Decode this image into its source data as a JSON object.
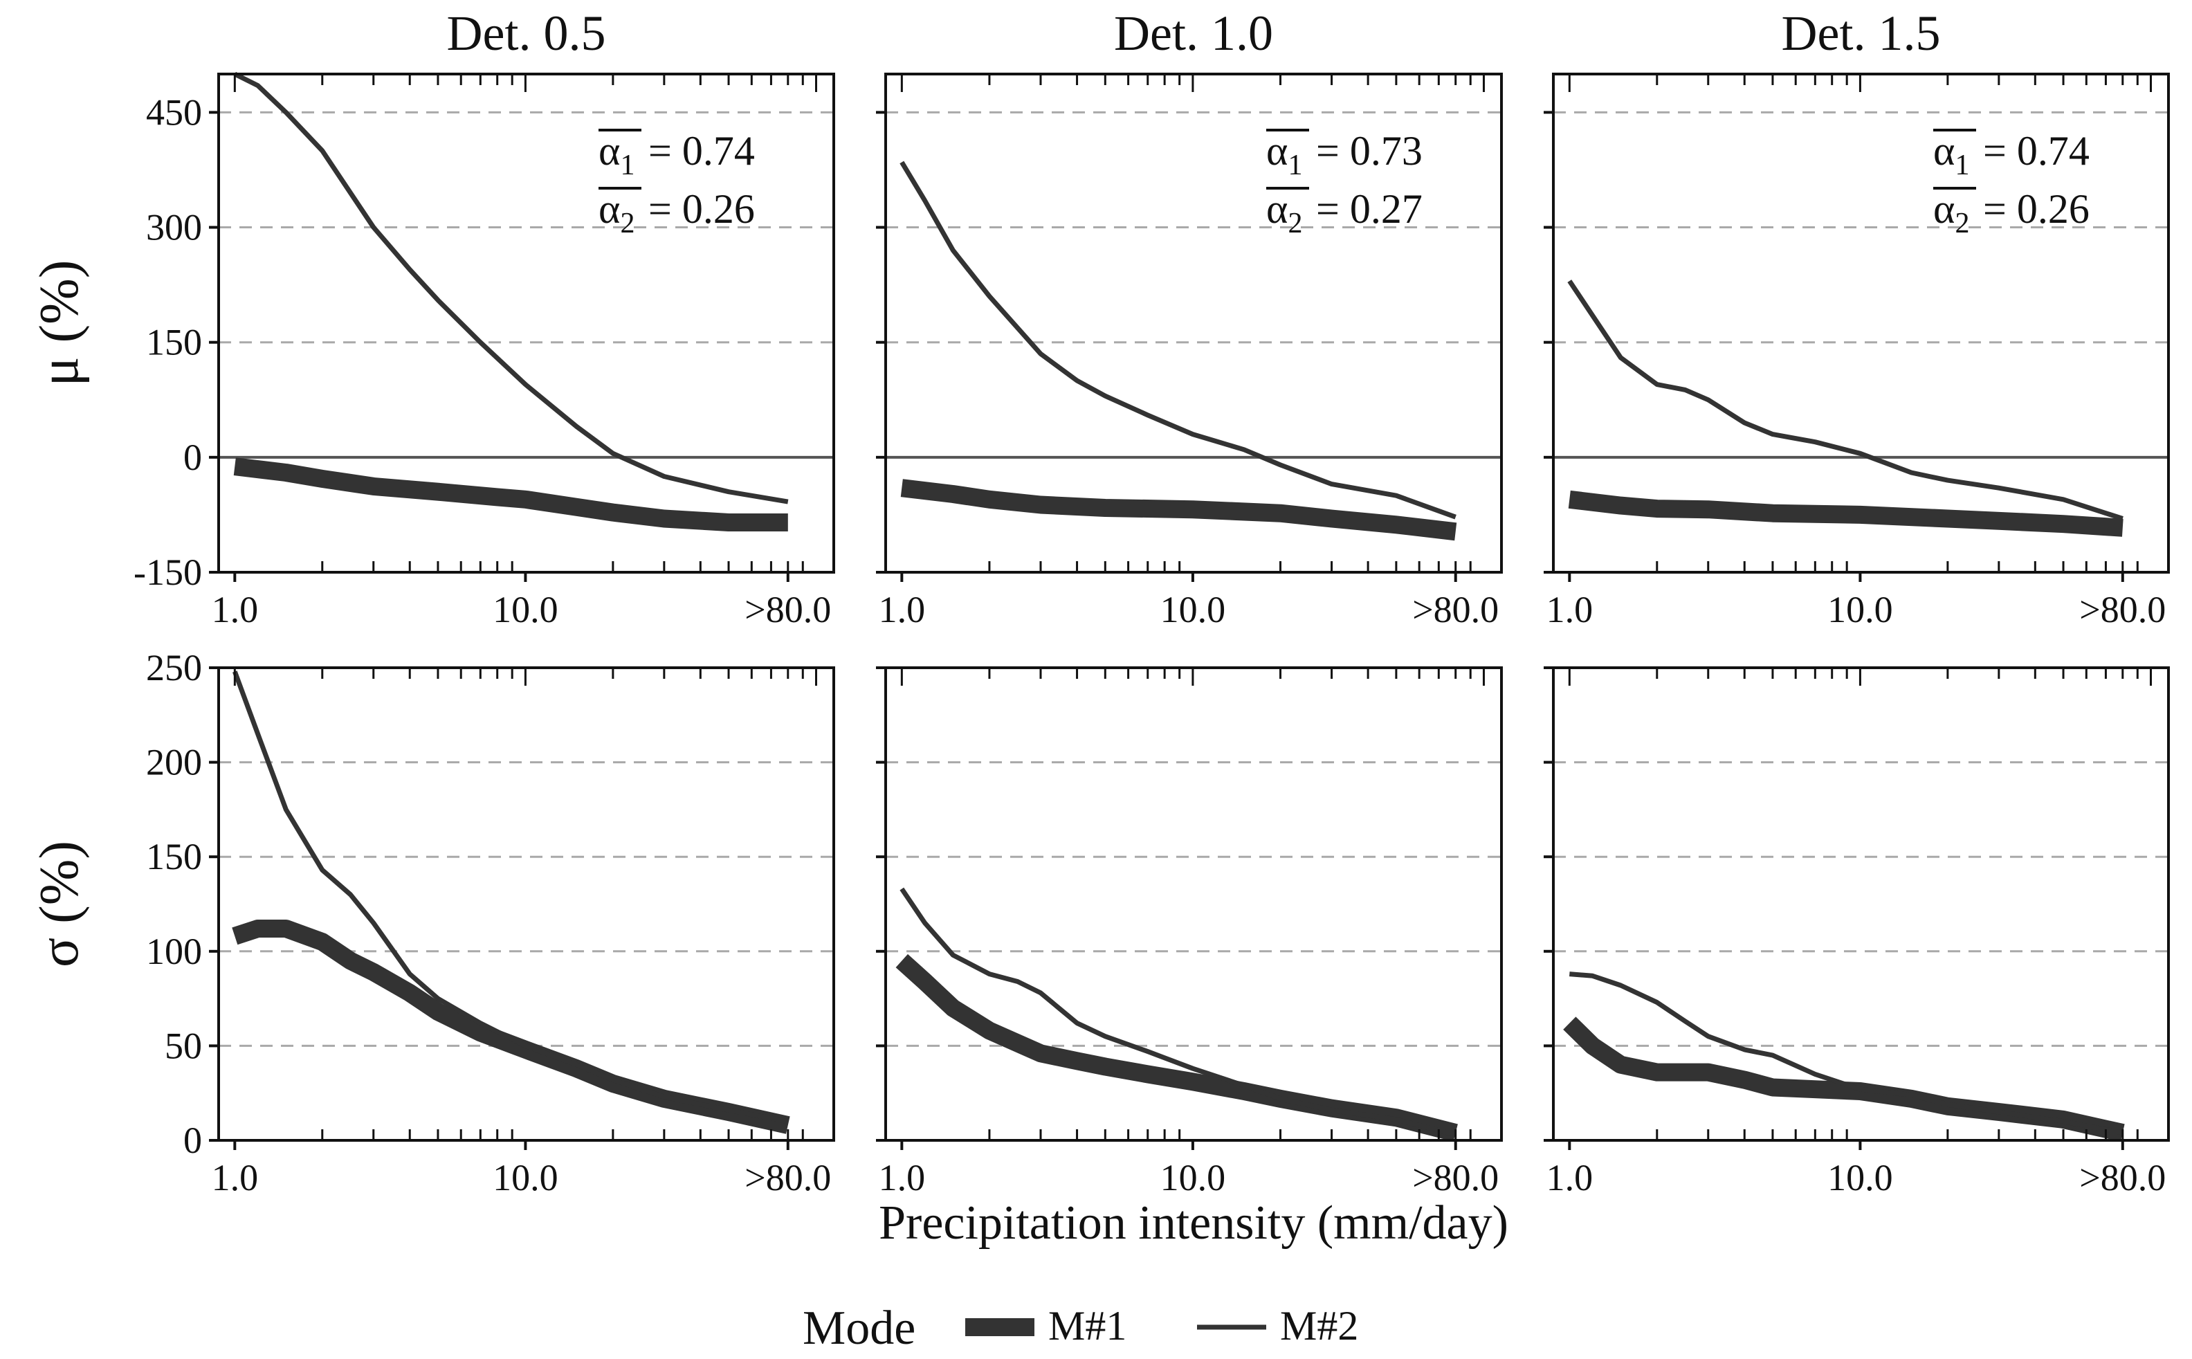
{
  "chart_data": {
    "type": "line",
    "x_axis": {
      "label": "Precipitation intensity (mm/day)",
      "scale": "log",
      "range": [
        0.88,
        115
      ],
      "tick_values": [
        1,
        10,
        80
      ],
      "tick_labels": [
        "1.0",
        "10.0",
        ">80.0"
      ]
    },
    "columns": [
      "Det. 0.5",
      "Det. 1.0",
      "Det. 1.5"
    ],
    "rows": [
      {
        "ylabel": "μ (%)",
        "ylim": [
          -150,
          500
        ],
        "yticks": [
          -150,
          0,
          150,
          300,
          450
        ],
        "ytick_labels": [
          "-150",
          "0",
          "150",
          "300",
          "450"
        ],
        "gridlines": [
          150,
          300,
          450
        ],
        "zero_line": true
      },
      {
        "ylabel": "σ (%)",
        "ylim": [
          0,
          250
        ],
        "yticks": [
          0,
          50,
          100,
          150,
          200,
          250
        ],
        "ytick_labels": [
          "0",
          "50",
          "100",
          "150",
          "200",
          "250"
        ],
        "gridlines": [
          50,
          100,
          150,
          200
        ],
        "zero_line": false
      }
    ],
    "legend": {
      "title": "Mode",
      "position": "bottom-center",
      "entries": [
        {
          "name": "M#1",
          "style": "thick"
        },
        {
          "name": "M#2",
          "style": "thin"
        }
      ]
    },
    "annotations": [
      {
        "panel": "Det. 0.5",
        "alpha1_label": "α",
        "alpha1_sub": "1",
        "alpha1_value": "= 0.74",
        "alpha2_label": "α",
        "alpha2_sub": "2",
        "alpha2_value": "= 0.26"
      },
      {
        "panel": "Det. 1.0",
        "alpha1_label": "α",
        "alpha1_sub": "1",
        "alpha1_value": "= 0.73",
        "alpha2_label": "α",
        "alpha2_sub": "2",
        "alpha2_value": "= 0.27"
      },
      {
        "panel": "Det. 1.5",
        "alpha1_label": "α",
        "alpha1_sub": "1",
        "alpha1_value": "= 0.74",
        "alpha2_label": "α",
        "alpha2_sub": "2",
        "alpha2_value": "= 0.26"
      }
    ],
    "panels": [
      {
        "row": 0,
        "col": 0,
        "series": [
          {
            "name": "M#1",
            "points": [
              [
                1,
                -12
              ],
              [
                1.5,
                -20
              ],
              [
                2,
                -28
              ],
              [
                3,
                -38
              ],
              [
                5,
                -45
              ],
              [
                8,
                -52
              ],
              [
                10,
                -55
              ],
              [
                15,
                -65
              ],
              [
                20,
                -72
              ],
              [
                30,
                -80
              ],
              [
                50,
                -85
              ],
              [
                80,
                -85
              ]
            ]
          },
          {
            "name": "M#2",
            "points": [
              [
                1,
                500
              ],
              [
                1.2,
                485
              ],
              [
                1.5,
                450
              ],
              [
                2,
                400
              ],
              [
                2.5,
                345
              ],
              [
                3,
                300
              ],
              [
                4,
                245
              ],
              [
                5,
                205
              ],
              [
                7,
                150
              ],
              [
                10,
                95
              ],
              [
                15,
                40
              ],
              [
                20,
                5
              ],
              [
                30,
                -25
              ],
              [
                50,
                -45
              ],
              [
                80,
                -58
              ]
            ]
          }
        ]
      },
      {
        "row": 0,
        "col": 1,
        "series": [
          {
            "name": "M#1",
            "points": [
              [
                1,
                -40
              ],
              [
                1.5,
                -48
              ],
              [
                2,
                -55
              ],
              [
                3,
                -62
              ],
              [
                5,
                -66
              ],
              [
                10,
                -68
              ],
              [
                20,
                -73
              ],
              [
                30,
                -80
              ],
              [
                50,
                -88
              ],
              [
                80,
                -97
              ]
            ]
          },
          {
            "name": "M#2",
            "points": [
              [
                1,
                385
              ],
              [
                1.2,
                335
              ],
              [
                1.5,
                270
              ],
              [
                2,
                210
              ],
              [
                3,
                135
              ],
              [
                4,
                100
              ],
              [
                5,
                80
              ],
              [
                7,
                55
              ],
              [
                10,
                30
              ],
              [
                15,
                10
              ],
              [
                20,
                -10
              ],
              [
                30,
                -35
              ],
              [
                50,
                -50
              ],
              [
                80,
                -78
              ]
            ]
          }
        ]
      },
      {
        "row": 0,
        "col": 2,
        "series": [
          {
            "name": "M#1",
            "points": [
              [
                1,
                -55
              ],
              [
                1.5,
                -63
              ],
              [
                2,
                -67
              ],
              [
                3,
                -68
              ],
              [
                5,
                -73
              ],
              [
                10,
                -75
              ],
              [
                20,
                -80
              ],
              [
                30,
                -83
              ],
              [
                50,
                -87
              ],
              [
                80,
                -92
              ]
            ]
          },
          {
            "name": "M#2",
            "points": [
              [
                1,
                230
              ],
              [
                1.2,
                185
              ],
              [
                1.5,
                130
              ],
              [
                2,
                95
              ],
              [
                2.5,
                88
              ],
              [
                3,
                75
              ],
              [
                4,
                45
              ],
              [
                5,
                30
              ],
              [
                7,
                20
              ],
              [
                10,
                5
              ],
              [
                15,
                -20
              ],
              [
                20,
                -30
              ],
              [
                30,
                -40
              ],
              [
                50,
                -55
              ],
              [
                80,
                -80
              ]
            ]
          }
        ]
      },
      {
        "row": 1,
        "col": 0,
        "series": [
          {
            "name": "M#1",
            "points": [
              [
                1,
                108
              ],
              [
                1.2,
                112
              ],
              [
                1.5,
                112
              ],
              [
                2,
                105
              ],
              [
                2.5,
                95
              ],
              [
                3,
                89
              ],
              [
                4,
                78
              ],
              [
                5,
                68
              ],
              [
                7,
                57
              ],
              [
                10,
                48
              ],
              [
                15,
                38
              ],
              [
                20,
                30
              ],
              [
                30,
                22
              ],
              [
                50,
                15
              ],
              [
                80,
                8
              ]
            ]
          },
          {
            "name": "M#2",
            "points": [
              [
                1,
                248
              ],
              [
                1.2,
                215
              ],
              [
                1.5,
                175
              ],
              [
                2,
                143
              ],
              [
                2.5,
                130
              ],
              [
                3,
                115
              ],
              [
                4,
                88
              ],
              [
                5,
                75
              ],
              [
                7,
                62
              ],
              [
                10,
                50
              ],
              [
                15,
                40
              ],
              [
                20,
                32
              ],
              [
                30,
                23
              ],
              [
                50,
                16
              ],
              [
                80,
                10
              ]
            ]
          }
        ]
      },
      {
        "row": 1,
        "col": 1,
        "series": [
          {
            "name": "M#1",
            "points": [
              [
                1,
                95
              ],
              [
                1.2,
                84
              ],
              [
                1.5,
                70
              ],
              [
                2,
                58
              ],
              [
                3,
                46
              ],
              [
                4,
                42
              ],
              [
                5,
                39
              ],
              [
                7,
                35
              ],
              [
                10,
                31
              ],
              [
                15,
                26
              ],
              [
                20,
                22
              ],
              [
                30,
                17
              ],
              [
                50,
                12
              ],
              [
                80,
                4
              ]
            ]
          },
          {
            "name": "M#2",
            "points": [
              [
                1,
                133
              ],
              [
                1.2,
                115
              ],
              [
                1.5,
                98
              ],
              [
                2,
                88
              ],
              [
                2.5,
                84
              ],
              [
                3,
                78
              ],
              [
                4,
                62
              ],
              [
                5,
                55
              ],
              [
                7,
                47
              ],
              [
                10,
                38
              ],
              [
                15,
                29
              ],
              [
                20,
                22
              ],
              [
                30,
                16
              ],
              [
                50,
                11
              ],
              [
                80,
                3
              ]
            ]
          }
        ]
      },
      {
        "row": 1,
        "col": 2,
        "series": [
          {
            "name": "M#1",
            "points": [
              [
                1,
                62
              ],
              [
                1.2,
                50
              ],
              [
                1.5,
                40
              ],
              [
                2,
                36
              ],
              [
                3,
                36
              ],
              [
                4,
                32
              ],
              [
                5,
                28
              ],
              [
                7,
                27
              ],
              [
                10,
                26
              ],
              [
                15,
                22
              ],
              [
                20,
                18
              ],
              [
                30,
                15
              ],
              [
                50,
                11
              ],
              [
                80,
                4
              ]
            ]
          },
          {
            "name": "M#2",
            "points": [
              [
                1,
                88
              ],
              [
                1.2,
                87
              ],
              [
                1.5,
                82
              ],
              [
                2,
                73
              ],
              [
                2.5,
                63
              ],
              [
                3,
                55
              ],
              [
                4,
                48
              ],
              [
                5,
                45
              ],
              [
                7,
                35
              ],
              [
                10,
                27
              ],
              [
                15,
                24
              ],
              [
                20,
                19
              ],
              [
                30,
                15
              ],
              [
                50,
                10
              ],
              [
                80,
                4
              ]
            ]
          }
        ]
      }
    ],
    "colors": {
      "line": "#333333",
      "grid": "#a9a9a9",
      "zero": "#555555",
      "frame": "#111111"
    }
  }
}
